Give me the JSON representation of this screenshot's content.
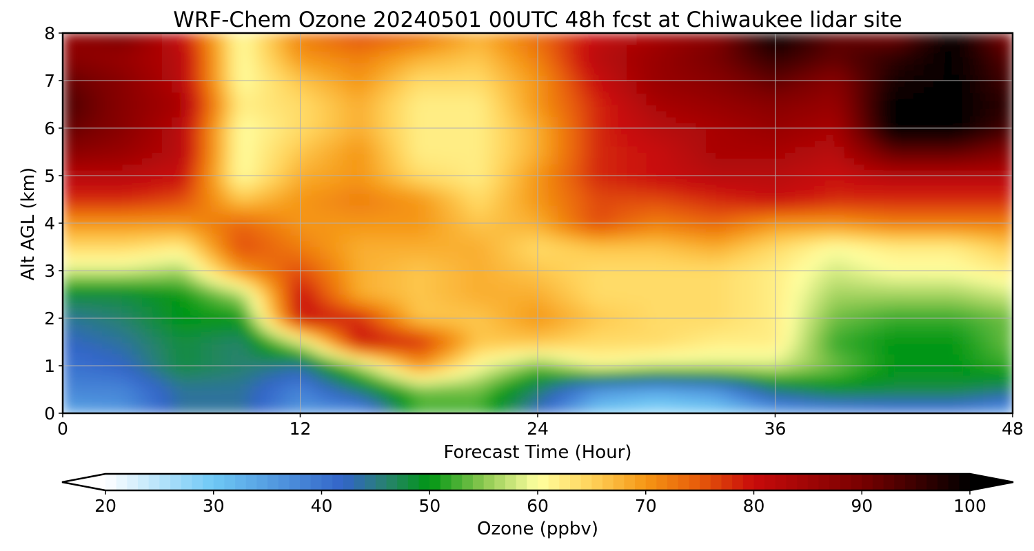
{
  "chart_data": {
    "type": "heatmap",
    "title": "WRF-Chem Ozone  20240501 00UTC 48h fcst at Chiwaukee lidar site",
    "xlabel": "Forecast Time (Hour)",
    "ylabel": "Alt AGL (km)",
    "xlim": [
      0,
      48
    ],
    "ylim": [
      0,
      8
    ],
    "xticks": [
      0,
      12,
      24,
      36,
      48
    ],
    "yticks": [
      0,
      1,
      2,
      3,
      4,
      5,
      6,
      7,
      8
    ],
    "grid": true,
    "x_hours": [
      0,
      3,
      6,
      9,
      12,
      15,
      18,
      21,
      24,
      27,
      30,
      33,
      36,
      39,
      42,
      45,
      48
    ],
    "y_km": [
      0,
      0.5,
      1,
      1.5,
      2,
      2.5,
      3,
      3.5,
      4,
      4.5,
      5,
      5.5,
      6,
      6.5,
      7,
      7.5,
      8
    ],
    "ozone_ppbv": [
      [
        34,
        36,
        44,
        44,
        36,
        36,
        52,
        52,
        42,
        30,
        27,
        29,
        34,
        36,
        38,
        38,
        34
      ],
      [
        38,
        38,
        44,
        44,
        38,
        46,
        54,
        54,
        46,
        36,
        34,
        36,
        46,
        49,
        48,
        48,
        46
      ],
      [
        40,
        42,
        48,
        46,
        44,
        56,
        70,
        60,
        54,
        60,
        58,
        58,
        58,
        54,
        50,
        50,
        52
      ],
      [
        42,
        44,
        48,
        46,
        58,
        80,
        78,
        66,
        66,
        64,
        64,
        62,
        62,
        52,
        50,
        50,
        54
      ],
      [
        44,
        46,
        50,
        50,
        80,
        78,
        66,
        66,
        70,
        66,
        64,
        64,
        62,
        54,
        52,
        52,
        54
      ],
      [
        48,
        48,
        50,
        56,
        80,
        68,
        66,
        68,
        68,
        64,
        64,
        64,
        62,
        56,
        56,
        56,
        58
      ],
      [
        58,
        58,
        56,
        70,
        76,
        68,
        66,
        68,
        66,
        64,
        64,
        64,
        62,
        58,
        60,
        60,
        62
      ],
      [
        64,
        64,
        62,
        76,
        72,
        68,
        68,
        68,
        64,
        66,
        66,
        68,
        64,
        60,
        62,
        62,
        66
      ],
      [
        70,
        70,
        70,
        74,
        70,
        70,
        70,
        66,
        68,
        76,
        72,
        74,
        70,
        70,
        72,
        72,
        72
      ],
      [
        78,
        78,
        76,
        66,
        70,
        72,
        70,
        64,
        70,
        76,
        76,
        78,
        80,
        78,
        78,
        78,
        78
      ],
      [
        82,
        82,
        80,
        60,
        68,
        70,
        64,
        62,
        70,
        78,
        80,
        82,
        82,
        80,
        82,
        82,
        82
      ],
      [
        88,
        86,
        82,
        60,
        66,
        70,
        62,
        62,
        68,
        78,
        80,
        84,
        84,
        82,
        92,
        92,
        88
      ],
      [
        92,
        88,
        82,
        60,
        64,
        68,
        62,
        62,
        68,
        78,
        82,
        84,
        86,
        84,
        100,
        100,
        94
      ],
      [
        94,
        88,
        84,
        62,
        64,
        68,
        62,
        62,
        70,
        78,
        84,
        86,
        88,
        86,
        100,
        100,
        96
      ],
      [
        92,
        88,
        82,
        60,
        66,
        70,
        64,
        64,
        70,
        80,
        86,
        88,
        92,
        88,
        98,
        100,
        94
      ],
      [
        88,
        86,
        82,
        60,
        70,
        72,
        68,
        66,
        72,
        82,
        86,
        90,
        96,
        92,
        96,
        100,
        92
      ],
      [
        86,
        90,
        80,
        60,
        72,
        76,
        74,
        68,
        74,
        80,
        84,
        88,
        100,
        92,
        90,
        100,
        88
      ]
    ],
    "colorbar": {
      "label": "Ozone  (ppbv)",
      "ticks": [
        20,
        30,
        40,
        50,
        60,
        70,
        80,
        90,
        100
      ],
      "min": 20,
      "max": 100,
      "extend": "both"
    }
  }
}
